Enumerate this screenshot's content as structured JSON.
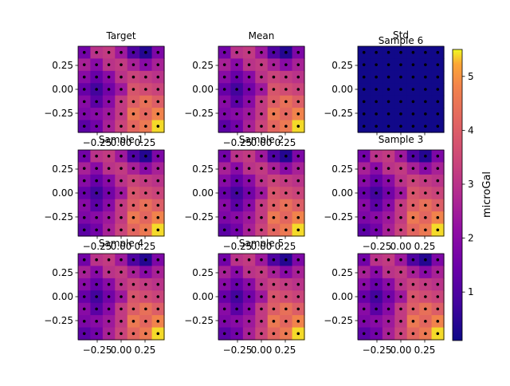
{
  "chart_data": {
    "type": "heatmap",
    "colormap": "plasma",
    "grid_size": [
      7,
      7
    ],
    "x_range": [
      -0.45,
      0.45
    ],
    "y_range": [
      -0.45,
      0.45
    ],
    "xticks": [
      -0.25,
      0.0,
      0.25
    ],
    "yticks": [
      0.25,
      0.0,
      -0.25
    ],
    "xtick_labels": [
      "−0.25",
      "0.00",
      "0.25"
    ],
    "ytick_labels": [
      "0.25",
      "0.00",
      "−0.25"
    ],
    "panels": [
      {
        "title": "Target",
        "field": "base",
        "xticks_shown": true
      },
      {
        "title": "Mean",
        "field": "base",
        "xticks_shown": true
      },
      {
        "title": "Std",
        "field": "std",
        "xticks_shown": false
      },
      {
        "title": "Sample 6",
        "field": "std",
        "xticks_shown": true
      },
      {
        "title": "Sample 1",
        "field": "base",
        "xticks_shown": true
      },
      {
        "title": "Sample 2",
        "field": "base",
        "xticks_shown": true
      },
      {
        "title": "Sample 3",
        "field": "base",
        "xticks_shown": true
      },
      {
        "title": "Sample 4",
        "field": "base",
        "xticks_shown": true
      },
      {
        "title": "Sample 5",
        "field": "base",
        "xticks_shown": true
      },
      {
        "title": "",
        "field": "base",
        "xticks_shown": true
      }
    ],
    "fields": {
      "base": [
        [
          1.6,
          3.0,
          3.2,
          2.4,
          1.0,
          0.4,
          1.8
        ],
        [
          2.6,
          2.0,
          3.0,
          3.2,
          2.6,
          2.0,
          2.6
        ],
        [
          2.0,
          1.4,
          2.0,
          3.0,
          3.4,
          3.2,
          3.0
        ],
        [
          1.4,
          0.8,
          1.6,
          2.4,
          3.8,
          3.6,
          3.4
        ],
        [
          2.0,
          1.2,
          2.0,
          3.2,
          4.0,
          4.4,
          4.0
        ],
        [
          1.8,
          2.0,
          2.4,
          3.2,
          4.6,
          4.2,
          4.8
        ],
        [
          1.2,
          1.6,
          2.6,
          3.4,
          4.2,
          4.6,
          5.4
        ]
      ],
      "std": [
        [
          0.15,
          0.15,
          0.15,
          0.15,
          0.15,
          0.15,
          0.15
        ],
        [
          0.15,
          0.15,
          0.15,
          0.15,
          0.15,
          0.15,
          0.15
        ],
        [
          0.15,
          0.15,
          0.15,
          0.15,
          0.15,
          0.15,
          0.15
        ],
        [
          0.15,
          0.15,
          0.15,
          0.15,
          0.15,
          0.15,
          0.15
        ],
        [
          0.15,
          0.15,
          0.15,
          0.15,
          0.15,
          0.15,
          0.15
        ],
        [
          0.15,
          0.15,
          0.15,
          0.15,
          0.15,
          0.15,
          0.15
        ],
        [
          0.15,
          0.15,
          0.15,
          0.15,
          0.15,
          0.15,
          0.15
        ]
      ]
    },
    "colorbar": {
      "label": "microGal",
      "range": [
        0.1,
        5.5
      ],
      "ticks": [
        1,
        2,
        3,
        4,
        5
      ],
      "tick_labels": [
        "1",
        "2",
        "3",
        "4",
        "5"
      ]
    },
    "station_markers": "black dots on 7x7 grid"
  }
}
